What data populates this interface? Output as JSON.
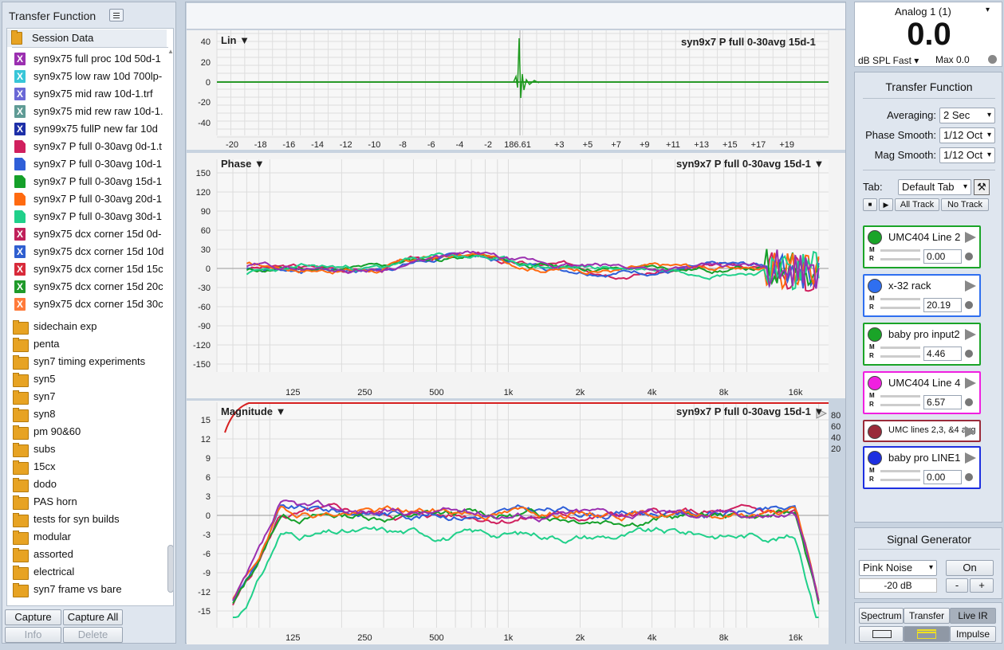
{
  "left_panel": {
    "title": "Transfer Function",
    "session_folder": "Session Data",
    "captures": [
      {
        "label": "syn9x75 full  proc 10d 50d-1",
        "color": "#9b2fb0",
        "mark": "X"
      },
      {
        "label": "syn9x75 low raw 10d 700lp-",
        "color": "#38c6d8",
        "mark": "X"
      },
      {
        "label": "syn9x75 mid raw 10d-1.trf",
        "color": "#6a68d6",
        "mark": "X"
      },
      {
        "label": "syn9x75 mid rew raw 10d-1.",
        "color": "#5f9b95",
        "mark": "X"
      },
      {
        "label": "syn99x75 fullP new far 10d",
        "color": "#1d2fa8",
        "mark": "X"
      },
      {
        "label": "syn9x7 P full 0-30avg 0d-1.t",
        "color": "#d0205e",
        "mark": ""
      },
      {
        "label": "syn9x7 P full 0-30avg 10d-1",
        "color": "#2f5fd8",
        "mark": ""
      },
      {
        "label": "syn9x7 P full 0-30avg 15d-1",
        "color": "#15a02a",
        "mark": ""
      },
      {
        "label": "syn9x7 P full 0-30avg 20d-1",
        "color": "#ff6a10",
        "mark": ""
      },
      {
        "label": "syn9x7 P full 0-30avg 30d-1",
        "color": "#20d08a",
        "mark": ""
      },
      {
        "label": "syn9x75 dcx corner 15d 0d-",
        "color": "#c0205a",
        "mark": "X"
      },
      {
        "label": "syn9x75 dcx corner 15d 10d",
        "color": "#2f5fd0",
        "mark": "X"
      },
      {
        "label": "syn9x75 dcx corner 15d 15c",
        "color": "#d82a3a",
        "mark": "X"
      },
      {
        "label": "syn9x75 dcx corner 15d 20c",
        "color": "#1f9a2a",
        "mark": "X"
      },
      {
        "label": "syn9x75 dcx corner 15d 30c",
        "color": "#ff7a3a",
        "mark": "X"
      }
    ],
    "folders": [
      "sidechain exp",
      "penta",
      "syn7 timing experiments",
      "syn5",
      "syn7",
      "syn8",
      "pm 90&60",
      "subs",
      "15cx",
      "dodo",
      "PAS horn",
      "tests for syn builds",
      "modular",
      "assorted",
      "electrical",
      "syn7 frame vs bare"
    ],
    "buttons": {
      "capture": "Capture",
      "capture_all": "Capture All",
      "info": "Info",
      "delete": "Delete"
    }
  },
  "lin_plot": {
    "label": "Lin",
    "trace_name": "syn9x7 P full 0-30avg 15d-1",
    "y_ticks": [
      "40",
      "20",
      "0",
      "-20",
      "-40"
    ],
    "x_ticks": [
      "-20",
      "-18",
      "-16",
      "-14",
      "-12",
      "-10",
      "-8",
      "-6",
      "-4",
      "-2",
      "186.61",
      "+3",
      "+5",
      "+7",
      "+9",
      "+11",
      "+13",
      "+15",
      "+17",
      "+19"
    ]
  },
  "phase_plot": {
    "label": "Phase",
    "trace_name": "syn9x7 P full 0-30avg 15d-1",
    "y_ticks": [
      "150",
      "120",
      "90",
      "60",
      "30",
      "0",
      "-30",
      "-60",
      "-90",
      "-120",
      "-150"
    ],
    "x_ticks": [
      "125",
      "250",
      "500",
      "1k",
      "2k",
      "4k",
      "8k",
      "16k"
    ]
  },
  "magnitude_plot": {
    "label": "Magnitude",
    "trace_name": "syn9x7 P full 0-30avg 15d-1",
    "y_ticks": [
      "15",
      "12",
      "9",
      "6",
      "3",
      "0",
      "-3",
      "-6",
      "-9",
      "-12",
      "-15"
    ],
    "coherence_ticks": [
      "80",
      "60",
      "40",
      "20"
    ],
    "x_ticks": [
      "125",
      "250",
      "500",
      "1k",
      "2k",
      "4k",
      "8k",
      "16k"
    ]
  },
  "meter": {
    "channel": "Analog 1 (1)",
    "value": "0.0",
    "weighting": "dB SPL Fast",
    "max": "Max 0.0"
  },
  "transfer_panel": {
    "title": "Transfer Function",
    "averaging_label": "Averaging:",
    "averaging_value": "2 Sec",
    "phase_smooth_label": "Phase Smooth:",
    "phase_smooth_value": "1/12 Oct",
    "mag_smooth_label": "Mag Smooth:",
    "mag_smooth_value": "1/12 Oct",
    "tab_label": "Tab:",
    "tab_value": "Default Tab",
    "all_track": "All Track",
    "no_track": "No Track",
    "tracks": [
      {
        "name": "UMC404 Line 2",
        "color": "#1aa428",
        "value": "0.00"
      },
      {
        "name": "x-32 rack",
        "color": "#2f6ff0",
        "value": "20.19"
      },
      {
        "name": "baby pro input2",
        "color": "#1aa428",
        "value": "4.46"
      },
      {
        "name": "UMC404 Line 4",
        "color": "#f020e0",
        "value": "6.57"
      },
      {
        "name": "UMC lines 2,3, &4 avg",
        "color": "#9a2a3a",
        "value": ""
      },
      {
        "name": "baby pro LINE1",
        "color": "#1d2fe0",
        "value": "0.00"
      }
    ]
  },
  "signal_generator": {
    "title": "Signal Generator",
    "type": "Pink Noise",
    "level": "-20 dB",
    "on": "On",
    "minus": "-",
    "plus": "+"
  },
  "modes": {
    "spectrum": "Spectrum",
    "transfer": "Transfer",
    "live_ir": "Live IR",
    "impulse": "Impulse"
  }
}
